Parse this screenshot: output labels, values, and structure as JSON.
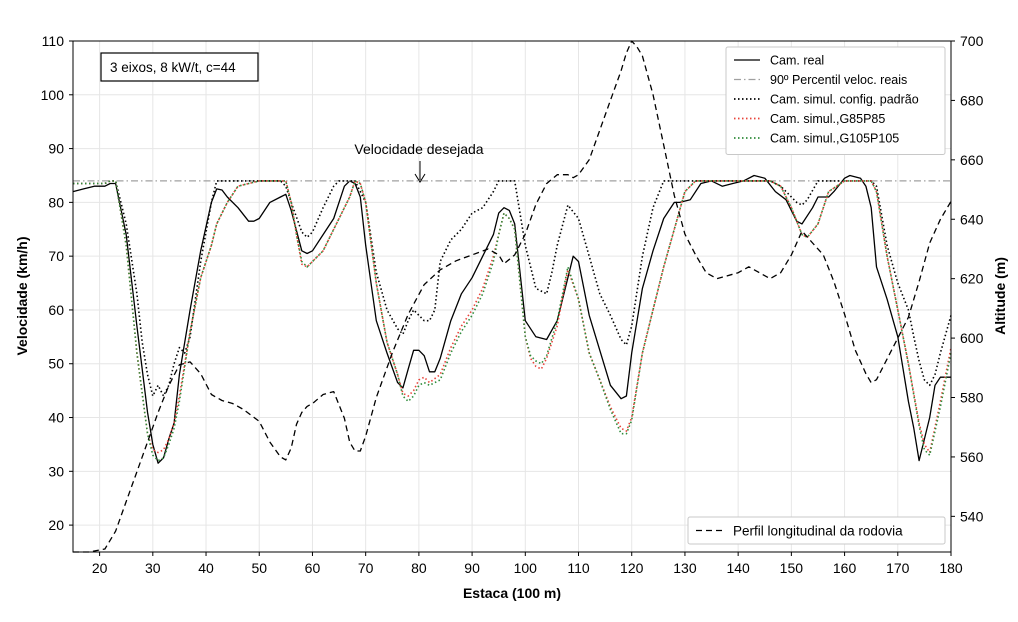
{
  "chart_data": {
    "type": "line",
    "title": "",
    "xlabel": "Estaca (100 m)",
    "ylabel": "Velocidade (km/h)",
    "y2label": "Altitude (m)",
    "xlim": [
      15,
      180
    ],
    "ylim": [
      15,
      110
    ],
    "y2lim": [
      528,
      700
    ],
    "xticks": [
      20,
      30,
      40,
      50,
      60,
      70,
      80,
      90,
      100,
      110,
      120,
      130,
      140,
      150,
      160,
      170,
      180
    ],
    "yticks": [
      20,
      30,
      40,
      50,
      60,
      70,
      80,
      90,
      100,
      110
    ],
    "y2ticks": [
      540,
      560,
      580,
      600,
      620,
      640,
      660,
      680,
      700
    ],
    "grid": true,
    "infobox": "3 eixos, 8 kW/t, c=44",
    "annotation": {
      "text": "Velocidade desejada",
      "x": 80,
      "y": 84
    },
    "legend_position": "top-right",
    "elevation_legend_position": "bottom-right",
    "series": [
      {
        "name": "Cam. real",
        "axis": "left",
        "style": "solid",
        "color": "#000000",
        "x": [
          15,
          17,
          19,
          21,
          22,
          23,
          25,
          27,
          29,
          30,
          31,
          32,
          33,
          34,
          35,
          37,
          39,
          41,
          42,
          43,
          44,
          46,
          48,
          49,
          50,
          52,
          54,
          55,
          56,
          58,
          59,
          60,
          62,
          64,
          66,
          67,
          68,
          69,
          70,
          72,
          74,
          76,
          77,
          78,
          79,
          80,
          81,
          82,
          83,
          84,
          86,
          88,
          90,
          92,
          94,
          95,
          96,
          97,
          98,
          100,
          102,
          104,
          106,
          108,
          109,
          110,
          112,
          114,
          116,
          118,
          119,
          120,
          122,
          124,
          126,
          128,
          129,
          131,
          133,
          135,
          137,
          139,
          141,
          143,
          145,
          147,
          149,
          151,
          152,
          154,
          155,
          157,
          158,
          160,
          161,
          163,
          164,
          165,
          166,
          168,
          170,
          172,
          173,
          174,
          176,
          177,
          178,
          180
        ],
        "values": [
          82,
          82.5,
          83,
          83,
          83.5,
          83.5,
          74,
          57,
          41,
          35,
          31.5,
          32.5,
          36,
          39,
          48,
          60,
          71,
          80,
          82.5,
          82.3,
          81,
          79,
          76.5,
          76.5,
          77,
          80,
          81,
          81.5,
          78.5,
          71,
          70.5,
          71,
          74,
          77,
          83,
          84,
          83.5,
          81,
          72,
          58,
          52,
          46.5,
          45.5,
          49,
          52.5,
          52.5,
          51.5,
          48.5,
          48.5,
          51,
          58,
          63,
          66,
          70,
          74,
          78,
          79,
          78.5,
          76,
          58,
          55,
          54.5,
          58,
          66,
          70,
          69,
          59,
          52.5,
          46,
          43.5,
          44,
          52,
          64,
          71,
          77,
          80,
          80,
          80.5,
          83.5,
          84,
          83,
          83.5,
          84,
          85,
          84.5,
          82,
          80.5,
          76.5,
          76,
          79,
          81,
          81,
          82,
          84.5,
          85,
          84.5,
          83,
          79,
          68,
          62,
          55,
          43,
          38,
          32,
          40,
          46,
          47.5,
          47.5
        ]
      },
      {
        "name": "90º Percentil veloc. reais",
        "axis": "left",
        "style": "dashdot",
        "color": "#a0a0a0",
        "x": [
          15,
          180
        ],
        "values": [
          84,
          84
        ]
      },
      {
        "name": "Cam. simul. config. padrão",
        "axis": "left",
        "style": "dotted",
        "color": "#000000",
        "x": [
          15,
          17,
          19,
          21,
          22,
          23,
          25,
          27,
          28,
          29,
          30,
          31,
          32,
          33,
          34,
          35,
          36,
          37,
          39,
          41,
          42,
          44,
          46,
          50,
          54,
          55,
          56,
          58,
          59,
          60,
          62,
          64,
          65,
          66,
          68,
          70,
          72,
          74,
          76,
          77,
          78,
          79,
          80,
          81,
          82,
          83,
          84,
          86,
          88,
          90,
          92,
          94,
          95,
          96,
          97,
          98,
          100,
          102,
          103,
          104,
          105,
          106,
          108,
          110,
          112,
          114,
          116,
          118,
          119,
          120,
          122,
          124,
          126,
          128,
          130,
          132,
          140,
          146,
          148,
          150,
          151,
          152,
          153,
          155,
          157,
          160,
          164,
          165,
          166,
          168,
          170,
          172,
          173,
          174,
          175,
          176,
          177,
          178,
          180
        ],
        "values": [
          83.5,
          83.5,
          83.5,
          83.5,
          84,
          84,
          76,
          63,
          54,
          48,
          44,
          46,
          44,
          46,
          50,
          53,
          52,
          55,
          69,
          80,
          84,
          84,
          84,
          84,
          84,
          83,
          80,
          74.5,
          73.5,
          74.5,
          79,
          83,
          84,
          84,
          84,
          80,
          67,
          60,
          56.5,
          55.5,
          58,
          60,
          59,
          58,
          58,
          60,
          69,
          73,
          75,
          78,
          79,
          82,
          84,
          84,
          84,
          84,
          72,
          64,
          63.5,
          63,
          67,
          72,
          79.5,
          77,
          70,
          63,
          59,
          54.5,
          53.5,
          57,
          70,
          79,
          84,
          84,
          84,
          84,
          84,
          84,
          83,
          81,
          80,
          79.5,
          80.5,
          84,
          84,
          84,
          84,
          84,
          83,
          72,
          65,
          60,
          55,
          50.5,
          47,
          46,
          48,
          52,
          59
        ]
      },
      {
        "name": "Cam. simul.,G85P85",
        "axis": "left",
        "style": "dotted",
        "color": "#e8433a",
        "x": [
          15,
          17,
          19,
          21,
          22,
          23,
          25,
          27,
          29,
          30,
          31,
          32,
          33,
          34,
          35,
          37,
          39,
          41,
          42,
          44,
          46,
          50,
          54,
          55,
          56,
          57,
          58,
          59,
          60,
          62,
          64,
          66,
          67,
          68,
          69,
          70,
          72,
          74,
          76,
          77,
          78,
          79,
          80,
          81,
          82,
          84,
          86,
          88,
          90,
          92,
          94,
          95,
          96,
          97,
          98,
          100,
          101,
          102,
          103,
          104,
          106,
          108,
          110,
          112,
          114,
          116,
          118,
          119,
          120,
          122,
          124,
          126,
          128,
          130,
          132,
          140,
          146,
          148,
          150,
          152,
          153,
          155,
          157,
          160,
          164,
          165,
          166,
          168,
          170,
          172,
          174,
          175,
          176,
          178,
          180
        ],
        "values": [
          83.5,
          83.5,
          83.5,
          83.5,
          84,
          84,
          72,
          52,
          37,
          34,
          33.5,
          34,
          36,
          39,
          44,
          56,
          66,
          72,
          76,
          80,
          83,
          84,
          84,
          84,
          80,
          74,
          68.5,
          68,
          69,
          71,
          75,
          79,
          81,
          84,
          83.5,
          80,
          65,
          54,
          48,
          44.5,
          44,
          45,
          47,
          47.5,
          46.5,
          48,
          53,
          57,
          60,
          64,
          70,
          74,
          78,
          77,
          75,
          55,
          51,
          49.5,
          49,
          51,
          57,
          67.5,
          62,
          52,
          47,
          42,
          38,
          37.5,
          40,
          52,
          60,
          68,
          75,
          82,
          84,
          84,
          84,
          83,
          79,
          74,
          73.5,
          76,
          82,
          84,
          84,
          84,
          82,
          70,
          60,
          50,
          39,
          35,
          33.5,
          43,
          53
        ]
      },
      {
        "name": "Cam. simul.,G105P105",
        "axis": "left",
        "style": "dotted",
        "color": "#2e8b3a",
        "x": [
          15,
          17,
          19,
          21,
          22,
          23,
          25,
          27,
          29,
          30,
          31,
          32,
          33,
          34,
          35,
          37,
          39,
          41,
          42,
          44,
          46,
          50,
          54,
          55,
          56,
          57,
          58,
          59,
          60,
          62,
          64,
          66,
          67,
          68,
          69,
          70,
          72,
          74,
          76,
          77,
          78,
          79,
          80,
          81,
          82,
          84,
          86,
          88,
          90,
          92,
          94,
          95,
          96,
          97,
          98,
          100,
          101,
          102,
          103,
          104,
          106,
          108,
          110,
          112,
          114,
          116,
          118,
          119,
          120,
          122,
          124,
          126,
          128,
          130,
          132,
          140,
          146,
          148,
          150,
          152,
          153,
          155,
          157,
          160,
          164,
          165,
          166,
          168,
          170,
          172,
          174,
          175,
          176,
          178,
          180
        ],
        "values": [
          83.5,
          83.5,
          83.5,
          83.5,
          84,
          84,
          72,
          52,
          37,
          33,
          32,
          32.5,
          35,
          38,
          43,
          56,
          66,
          72,
          76,
          80,
          83,
          84,
          84,
          84,
          80,
          74,
          69,
          68,
          69,
          71,
          75,
          79,
          81,
          84,
          83.5,
          80,
          65,
          54,
          48,
          44,
          43,
          44,
          46,
          46.5,
          46,
          47,
          52,
          56,
          59,
          63,
          69,
          74,
          78,
          77,
          75,
          55,
          51.5,
          50.5,
          50,
          51.5,
          58,
          68,
          62,
          52,
          47,
          41.5,
          37,
          37,
          39.5,
          52,
          60,
          68,
          75,
          82,
          84,
          84,
          84,
          83,
          79,
          74,
          73.5,
          76,
          82,
          84,
          84,
          84,
          82,
          70,
          60,
          50,
          38.5,
          34,
          33,
          42,
          52
        ]
      },
      {
        "name": "Perfil longitudinal da rodovia",
        "axis": "right",
        "style": "dashed",
        "color": "#000000",
        "x": [
          15,
          18,
          21,
          23,
          25,
          27,
          29,
          31,
          33,
          35,
          37,
          39,
          41,
          43,
          45,
          47,
          50,
          52,
          54,
          55,
          56,
          57,
          58,
          59,
          60,
          62,
          64,
          66,
          67,
          68,
          69,
          70,
          72,
          75,
          78,
          81,
          84,
          87,
          90,
          93,
          95,
          96,
          98,
          100,
          102,
          104,
          106,
          108,
          109,
          110,
          112,
          114,
          116,
          118,
          119,
          120,
          121,
          122,
          124,
          126,
          128,
          130,
          132,
          134,
          136,
          140,
          142,
          144,
          146,
          148,
          150,
          152,
          154,
          156,
          158,
          160,
          162,
          164,
          165,
          166,
          168,
          170,
          172,
          174,
          176,
          178,
          180
        ],
        "values": [
          528,
          528,
          529,
          535,
          545,
          555,
          565,
          575,
          584,
          591,
          592,
          588,
          581,
          579,
          578,
          576,
          572,
          565,
          560,
          559,
          563,
          571,
          575,
          577,
          578,
          581,
          582,
          573,
          565,
          562,
          562,
          567,
          580,
          595,
          608,
          618,
          623,
          626,
          628,
          630,
          628,
          625,
          628,
          635,
          645,
          652,
          655,
          655,
          654,
          655,
          660,
          670,
          680,
          690,
          696,
          700,
          698,
          695,
          682,
          665,
          648,
          635,
          628,
          622,
          620,
          622,
          624,
          622,
          620,
          622,
          628,
          636,
          632,
          628,
          619,
          608,
          596,
          588,
          585,
          586,
          593,
          600,
          607,
          619,
          632,
          640,
          646
        ]
      }
    ]
  }
}
